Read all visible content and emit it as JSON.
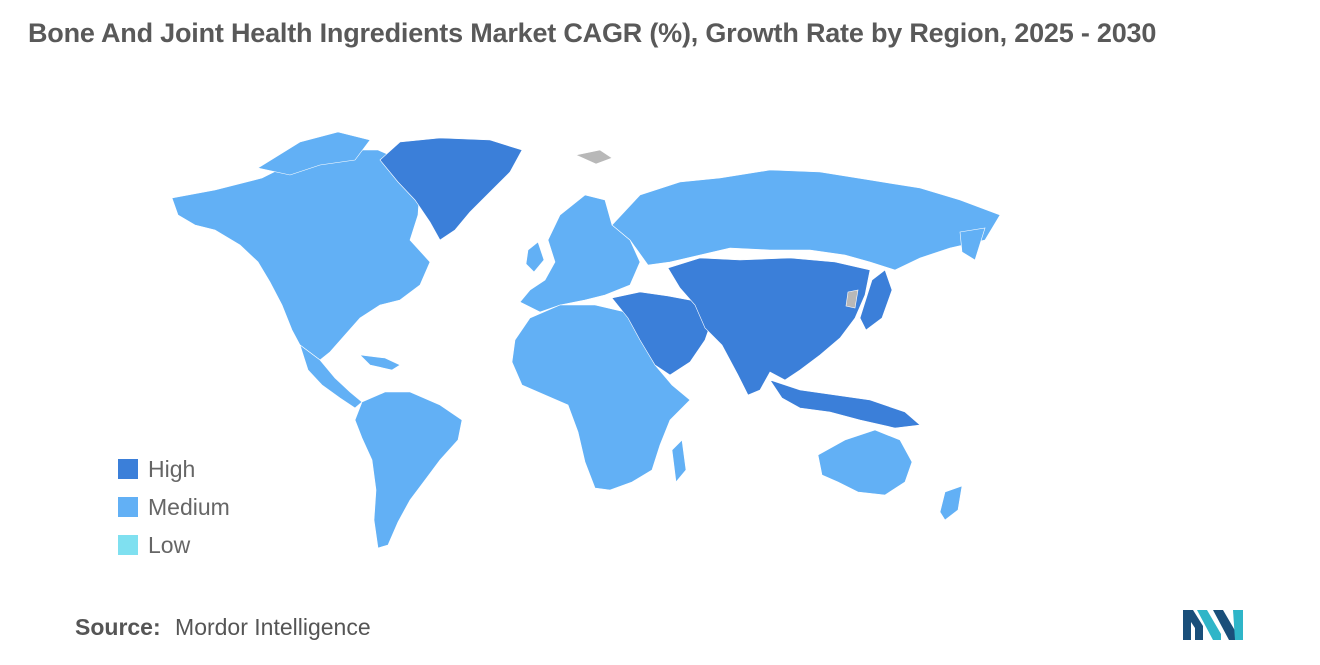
{
  "title": "Bone And Joint Health Ingredients Market CAGR (%), Growth Rate by Region, 2025 - 2030",
  "legend": [
    {
      "label": "High",
      "color": "#3b7fd9"
    },
    {
      "label": "Medium",
      "color": "#62b0f5"
    },
    {
      "label": "Low",
      "color": "#7fe0f0"
    }
  ],
  "colors": {
    "high": "#3b7fd9",
    "medium": "#62b0f5",
    "no_data": "#b8b8b8",
    "background": "#ffffff"
  },
  "map_regions": [
    {
      "region": "North America",
      "level": "Medium"
    },
    {
      "region": "Greenland",
      "level": "High"
    },
    {
      "region": "South America",
      "level": "Medium"
    },
    {
      "region": "Europe",
      "level": "Medium"
    },
    {
      "region": "Russia",
      "level": "Medium"
    },
    {
      "region": "Africa",
      "level": "Medium"
    },
    {
      "region": "Middle East",
      "level": "High"
    },
    {
      "region": "Asia",
      "level": "High"
    },
    {
      "region": "Australia",
      "level": "Medium"
    },
    {
      "region": "New Zealand",
      "level": "Medium"
    }
  ],
  "source": {
    "label": "Source:",
    "text": "Mordor Intelligence"
  },
  "logo": {
    "icon": "mordor-intelligence-logo"
  }
}
